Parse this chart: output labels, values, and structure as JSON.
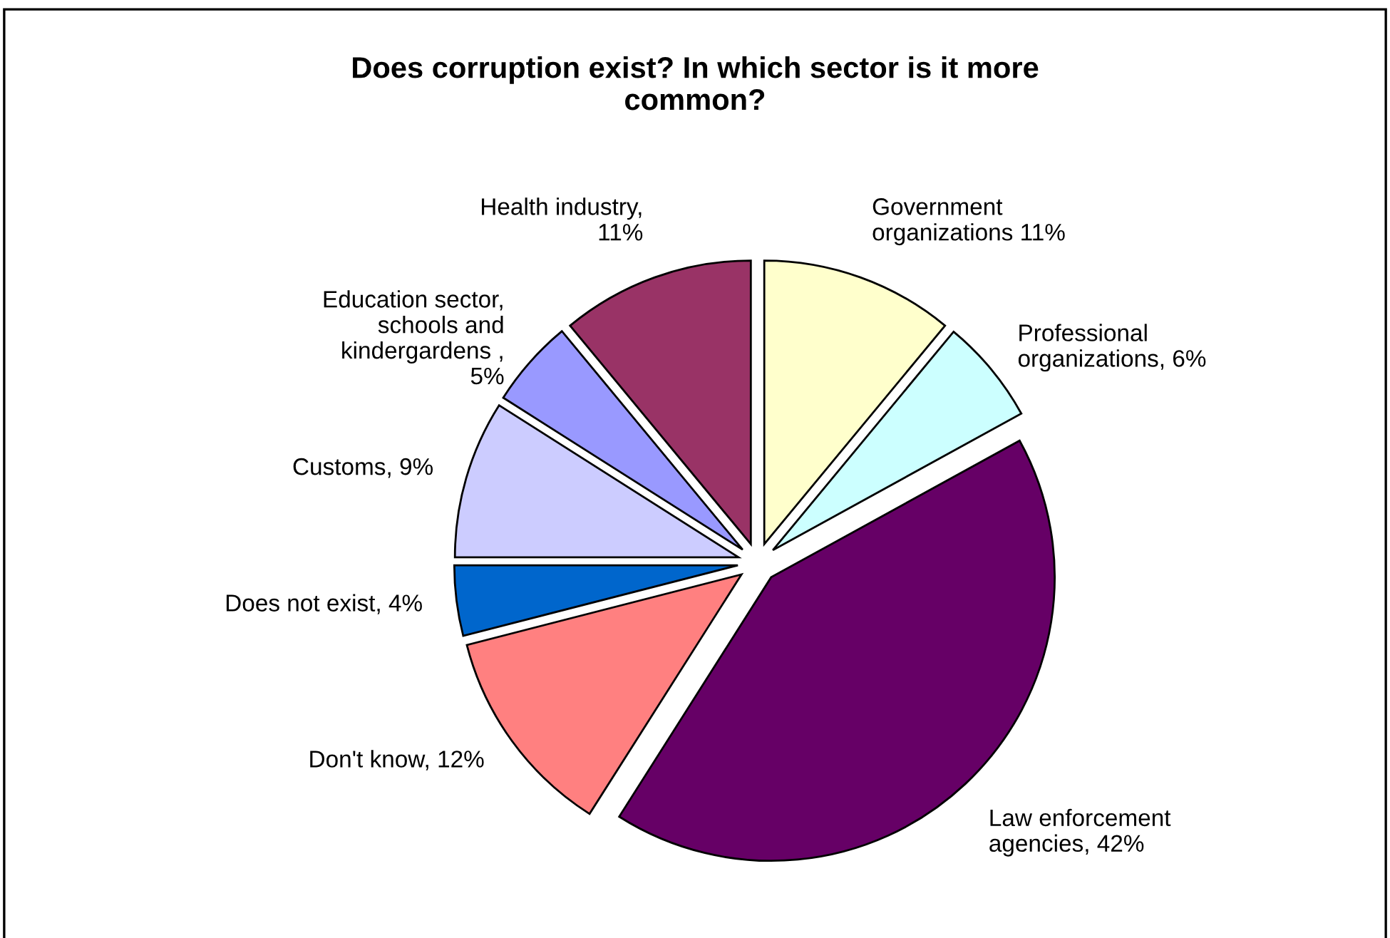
{
  "chart_data": {
    "type": "pie",
    "title": "Does corruption exist? In which sector is it more\ncommon?",
    "categories": [
      "Government\norganizations 11%",
      "Professional\norganizations, 6%",
      "Law enforcement\nagencies, 42%",
      "Don't know, 12%",
      "Does not exist, 4%",
      "Customs, 9%",
      "Education sector,\nschools and\nkindergardens ,\n5%",
      "Health industry,\n11%"
    ],
    "values": [
      11,
      6,
      42,
      12,
      4,
      9,
      5,
      11
    ],
    "colors": [
      "#ffffcc",
      "#ccffff",
      "#660066",
      "#ff8080",
      "#0066cc",
      "#ccccff",
      "#9999ff",
      "#993366"
    ],
    "legend": false
  }
}
